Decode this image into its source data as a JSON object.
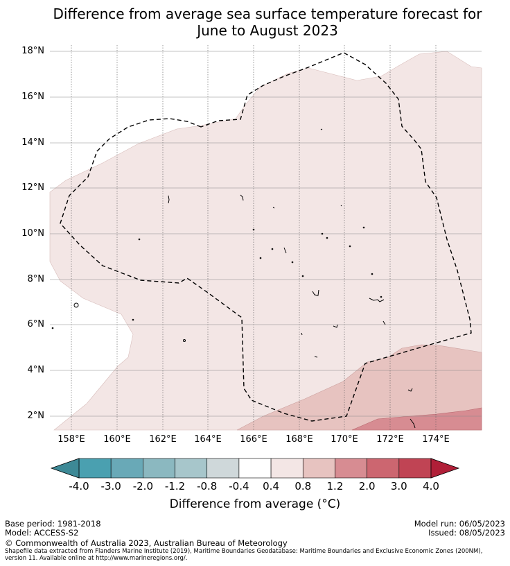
{
  "title_line1": "Difference from average sea surface temperature forecast for",
  "title_line2": "June to August 2023",
  "lat_labels": [
    "18°N",
    "16°N",
    "14°N",
    "12°N",
    "10°N",
    "8°N",
    "6°N",
    "4°N",
    "2°N"
  ],
  "lon_labels": [
    "158°E",
    "160°E",
    "162°E",
    "164°E",
    "166°E",
    "168°E",
    "170°E",
    "172°E",
    "174°E"
  ],
  "colorbar": {
    "ticks": [
      "-4.0",
      "-3.0",
      "-2.0",
      "-1.2",
      "-0.8",
      "-0.4",
      "0.4",
      "0.8",
      "1.2",
      "2.0",
      "3.0",
      "4.0"
    ],
    "colors": [
      "#4aa0b0",
      "#69a9b7",
      "#8bb8c0",
      "#a7c6cb",
      "#cfd8da",
      "#ffffff",
      "#f3e6e5",
      "#e7c3c0",
      "#d78c92",
      "#cc6670",
      "#c04454"
    ],
    "extend_low": "#3d8996",
    "extend_high": "#b01f38",
    "label": "Difference from average (°C)"
  },
  "footer": {
    "base_period": "Base period: 1981-2018",
    "model": "Model: ACCESS-S2",
    "model_run": "Model run: 06/05/2023",
    "issued": "Issued: 08/05/2023",
    "copyright": "© Commonwealth of Australia 2023, Australian Bureau of Meteorology",
    "source": "Shapefile data extracted from Flanders Marine Institute (2019), Maritime Boundaries Geodatabase: Maritime Boundaries and Exclusive Economic Zones (200NM), version 11. Available online at http://www.marineregions.org/."
  },
  "map_colors": {
    "band_0_4_0_8": "#f3e6e5",
    "band_0_8_1_2": "#e7c3c0",
    "band_1_2_2_0": "#d78c92"
  }
}
